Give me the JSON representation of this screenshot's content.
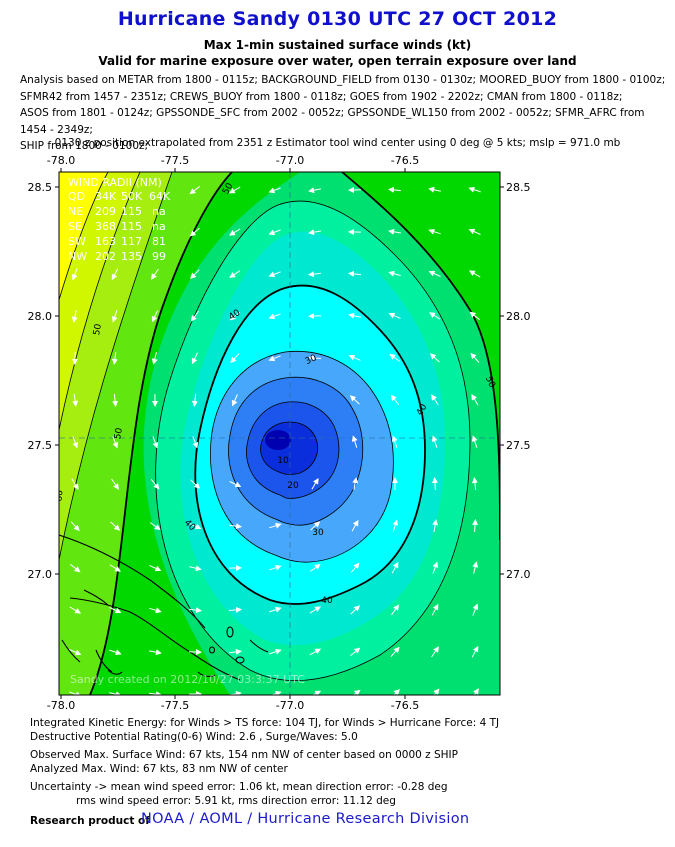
{
  "header": {
    "title": "Hurricane Sandy 0130 UTC 27 OCT 2012",
    "subtitle_line1": "Max 1-min sustained surface winds (kt)",
    "subtitle_line2": "Valid for marine exposure over water, open terrain exposure over land"
  },
  "analysis": {
    "lines": [
      "Analysis based on METAR from 1800 - 0115z; BACKGROUND_FIELD from 0130 - 0130z; MOORED_BUOY from 1800 - 0100z;",
      "SFMR42 from 1457 - 2351z; CREWS_BUOY from 1800 - 0118z; GOES from 1902 - 2202z; CMAN from 1800 - 0118z;",
      "ASOS from 1801 - 0124z; GPSSONDE_SFC from 2002 - 0052z; GPSSONDE_WL150 from 2002 - 0052z; SFMR_AFRC from 1454 - 2349z;",
      "SHIP from 1800 - 0100z;"
    ],
    "position_line": "0130 z position extrapolated from 2351 z Estimator tool wind center using 0 deg @ 5 kts; mslp = 971.0 mb"
  },
  "map": {
    "x_ticks": [
      "-78.0",
      "-77.5",
      "-77.0",
      "-76.5"
    ],
    "y_ticks": [
      "28.5",
      "28.0",
      "27.5",
      "27.0"
    ],
    "wind_radii": {
      "header": "WIND RADII (NM)",
      "columns": [
        "QD",
        "34K",
        "50K",
        "64K"
      ],
      "rows": [
        [
          "NE",
          "209",
          "115",
          "na"
        ],
        [
          "SE",
          "368",
          "115",
          "na"
        ],
        [
          "SW",
          "163",
          "117",
          "81"
        ],
        [
          "NW",
          "202",
          "135",
          "99"
        ]
      ]
    },
    "contour_labels": [
      "10",
      "20",
      "30",
      "30",
      "40",
      "40",
      "40",
      "40",
      "50",
      "50",
      "50",
      "50",
      "60"
    ],
    "watermark": "Sandy    created on 2012/10/27  03:3:37 UTC",
    "colors": {
      "c_10": "#0a2edc",
      "c_15": "#1c55ec",
      "c_20": "#2e7ff5",
      "c_25": "#47a8fb",
      "c_30": "#00ffff",
      "c_35": "#00e8d0",
      "c_40": "#00f0a0",
      "c_45": "#00e070",
      "c_50": "#00d800",
      "c_55": "#62e610",
      "c_60": "#a6ee10",
      "c_65": "#d0f600",
      "c_70": "#ffff00"
    }
  },
  "info": {
    "ike": "Integrated Kinetic Energy: for Winds > TS force: 104 TJ, for Winds > Hurricane Force: 4 TJ",
    "dpr": "Destructive Potential Rating(0-6)  Wind: 2.6 , Surge/Waves: 5.0",
    "observed": "Observed Max. Surface Wind: 67 kts, 154 nm NW of center based on 0000 z SHIP",
    "analyzed": "Analyzed Max. Wind: 67 kts, 83 nm  NW of center",
    "uncertainty1": "Uncertainty -> mean wind speed error: 1.06 kt, mean direction error:  -0.28 deg",
    "uncertainty2": "rms wind speed error: 5.91 kt, rms direction error: 11.12 deg"
  },
  "credit": {
    "prefix": "Research product of",
    "link": "NOAA  /  AOML  /  Hurricane Research Division"
  }
}
